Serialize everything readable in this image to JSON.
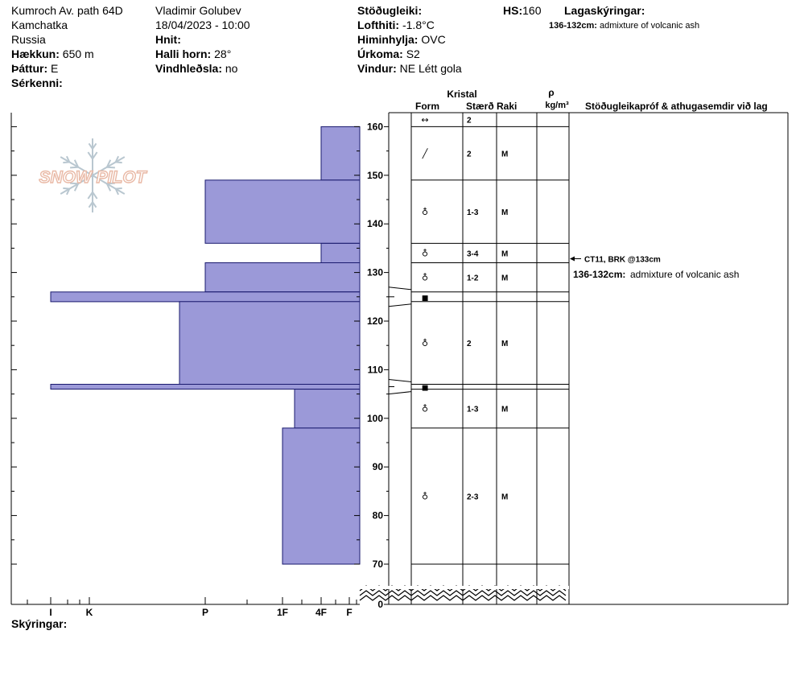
{
  "header": {
    "location": "Kumroch Av. path 64D",
    "region": "Kamchatka",
    "country": "Russia",
    "elevation_label": "Hækkun:",
    "elevation": "650 m",
    "aspect_label": "Þáttur:",
    "aspect": "E",
    "special_label": "Sérkenni:",
    "observer": "Vladimir Golubev",
    "datetime": "18/04/2023 - 10:00",
    "coords_label": "Hnit:",
    "slope_label": "Halli horn:",
    "slope": "28°",
    "wind_loading_label": "Vindhleðsla:",
    "wind_loading": "no",
    "stability_label": "Stöðugleiki:",
    "air_temp_label": "Lofthiti:",
    "air_temp": "-1.8°C",
    "sky_label": "Himinhylja:",
    "sky": "OVC",
    "precip_label": "Úrkoma:",
    "precip": "S2",
    "wind_label": "Vindur:",
    "wind": "NE Létt gola",
    "hs_label": "HS:",
    "hs": "160",
    "layer_notes_label": "Lagaskýringar:",
    "layer_note_range": "136-132cm:",
    "layer_note_text": "admixture of volcanic ash",
    "comments_label": "Skýringar:"
  },
  "logo_text": "SNOW PILOT",
  "colors": {
    "hardness_fill": "#9b99d8",
    "hardness_stroke": "#1a1a6e",
    "logo": "#e9b9a6",
    "logo_flake": "#b9c7d0"
  },
  "columns": {
    "crystal": "Kristal",
    "form": "Form",
    "size": "Stærð",
    "moisture": "Raki",
    "density_symbol": "ρ",
    "density_unit": "kg/m³",
    "stability": "Stöðugleikapróf & athugasemdir við lag"
  },
  "stability_test": {
    "text": "CT11, BRK @133cm",
    "depth": 133
  },
  "layer_comment": {
    "range": "136-132cm:",
    "text": "admixture of volcanic ash"
  },
  "chart_data": {
    "type": "bar",
    "title": "",
    "ylabel": "",
    "ylim": [
      0,
      160
    ],
    "y_axis_ticks": [
      0,
      70,
      80,
      90,
      100,
      110,
      120,
      130,
      140,
      150,
      160
    ],
    "hardness_scale": [
      "F",
      "4F",
      "1F",
      "P",
      "K",
      "I"
    ],
    "hardness_axis_labels": [
      "I",
      "K",
      "P",
      "1F",
      "4F",
      "F"
    ],
    "layers": [
      {
        "top": 163,
        "bottom": 160,
        "hardness": null,
        "form": "↔",
        "size": "2",
        "moisture": ""
      },
      {
        "top": 160,
        "bottom": 149,
        "hardness": "4F",
        "form": "╱",
        "size": "2",
        "moisture": "M"
      },
      {
        "top": 149,
        "bottom": 136,
        "hardness": "P",
        "form": "♁",
        "size": "1-3",
        "moisture": "M"
      },
      {
        "top": 136,
        "bottom": 132,
        "hardness": "4F",
        "form": "♁",
        "size": "3-4",
        "moisture": "M"
      },
      {
        "top": 132,
        "bottom": 126,
        "hardness": "P",
        "form": "♁",
        "size": "1-2",
        "moisture": "M"
      },
      {
        "top": 126,
        "bottom": 124,
        "hardness": "I",
        "form": "■",
        "size": "",
        "moisture": ""
      },
      {
        "top": 124,
        "bottom": 107,
        "hardness": "P-",
        "form": "♁",
        "size": "2",
        "moisture": "M"
      },
      {
        "top": 107,
        "bottom": 106,
        "hardness": "I",
        "form": "■",
        "size": "",
        "moisture": ""
      },
      {
        "top": 106,
        "bottom": 98,
        "hardness": "1F-",
        "form": "♁",
        "size": "1-3",
        "moisture": "M"
      },
      {
        "top": 98,
        "bottom": 70,
        "hardness": "1F",
        "form": "♁",
        "size": "2-3",
        "moisture": "M"
      }
    ]
  }
}
